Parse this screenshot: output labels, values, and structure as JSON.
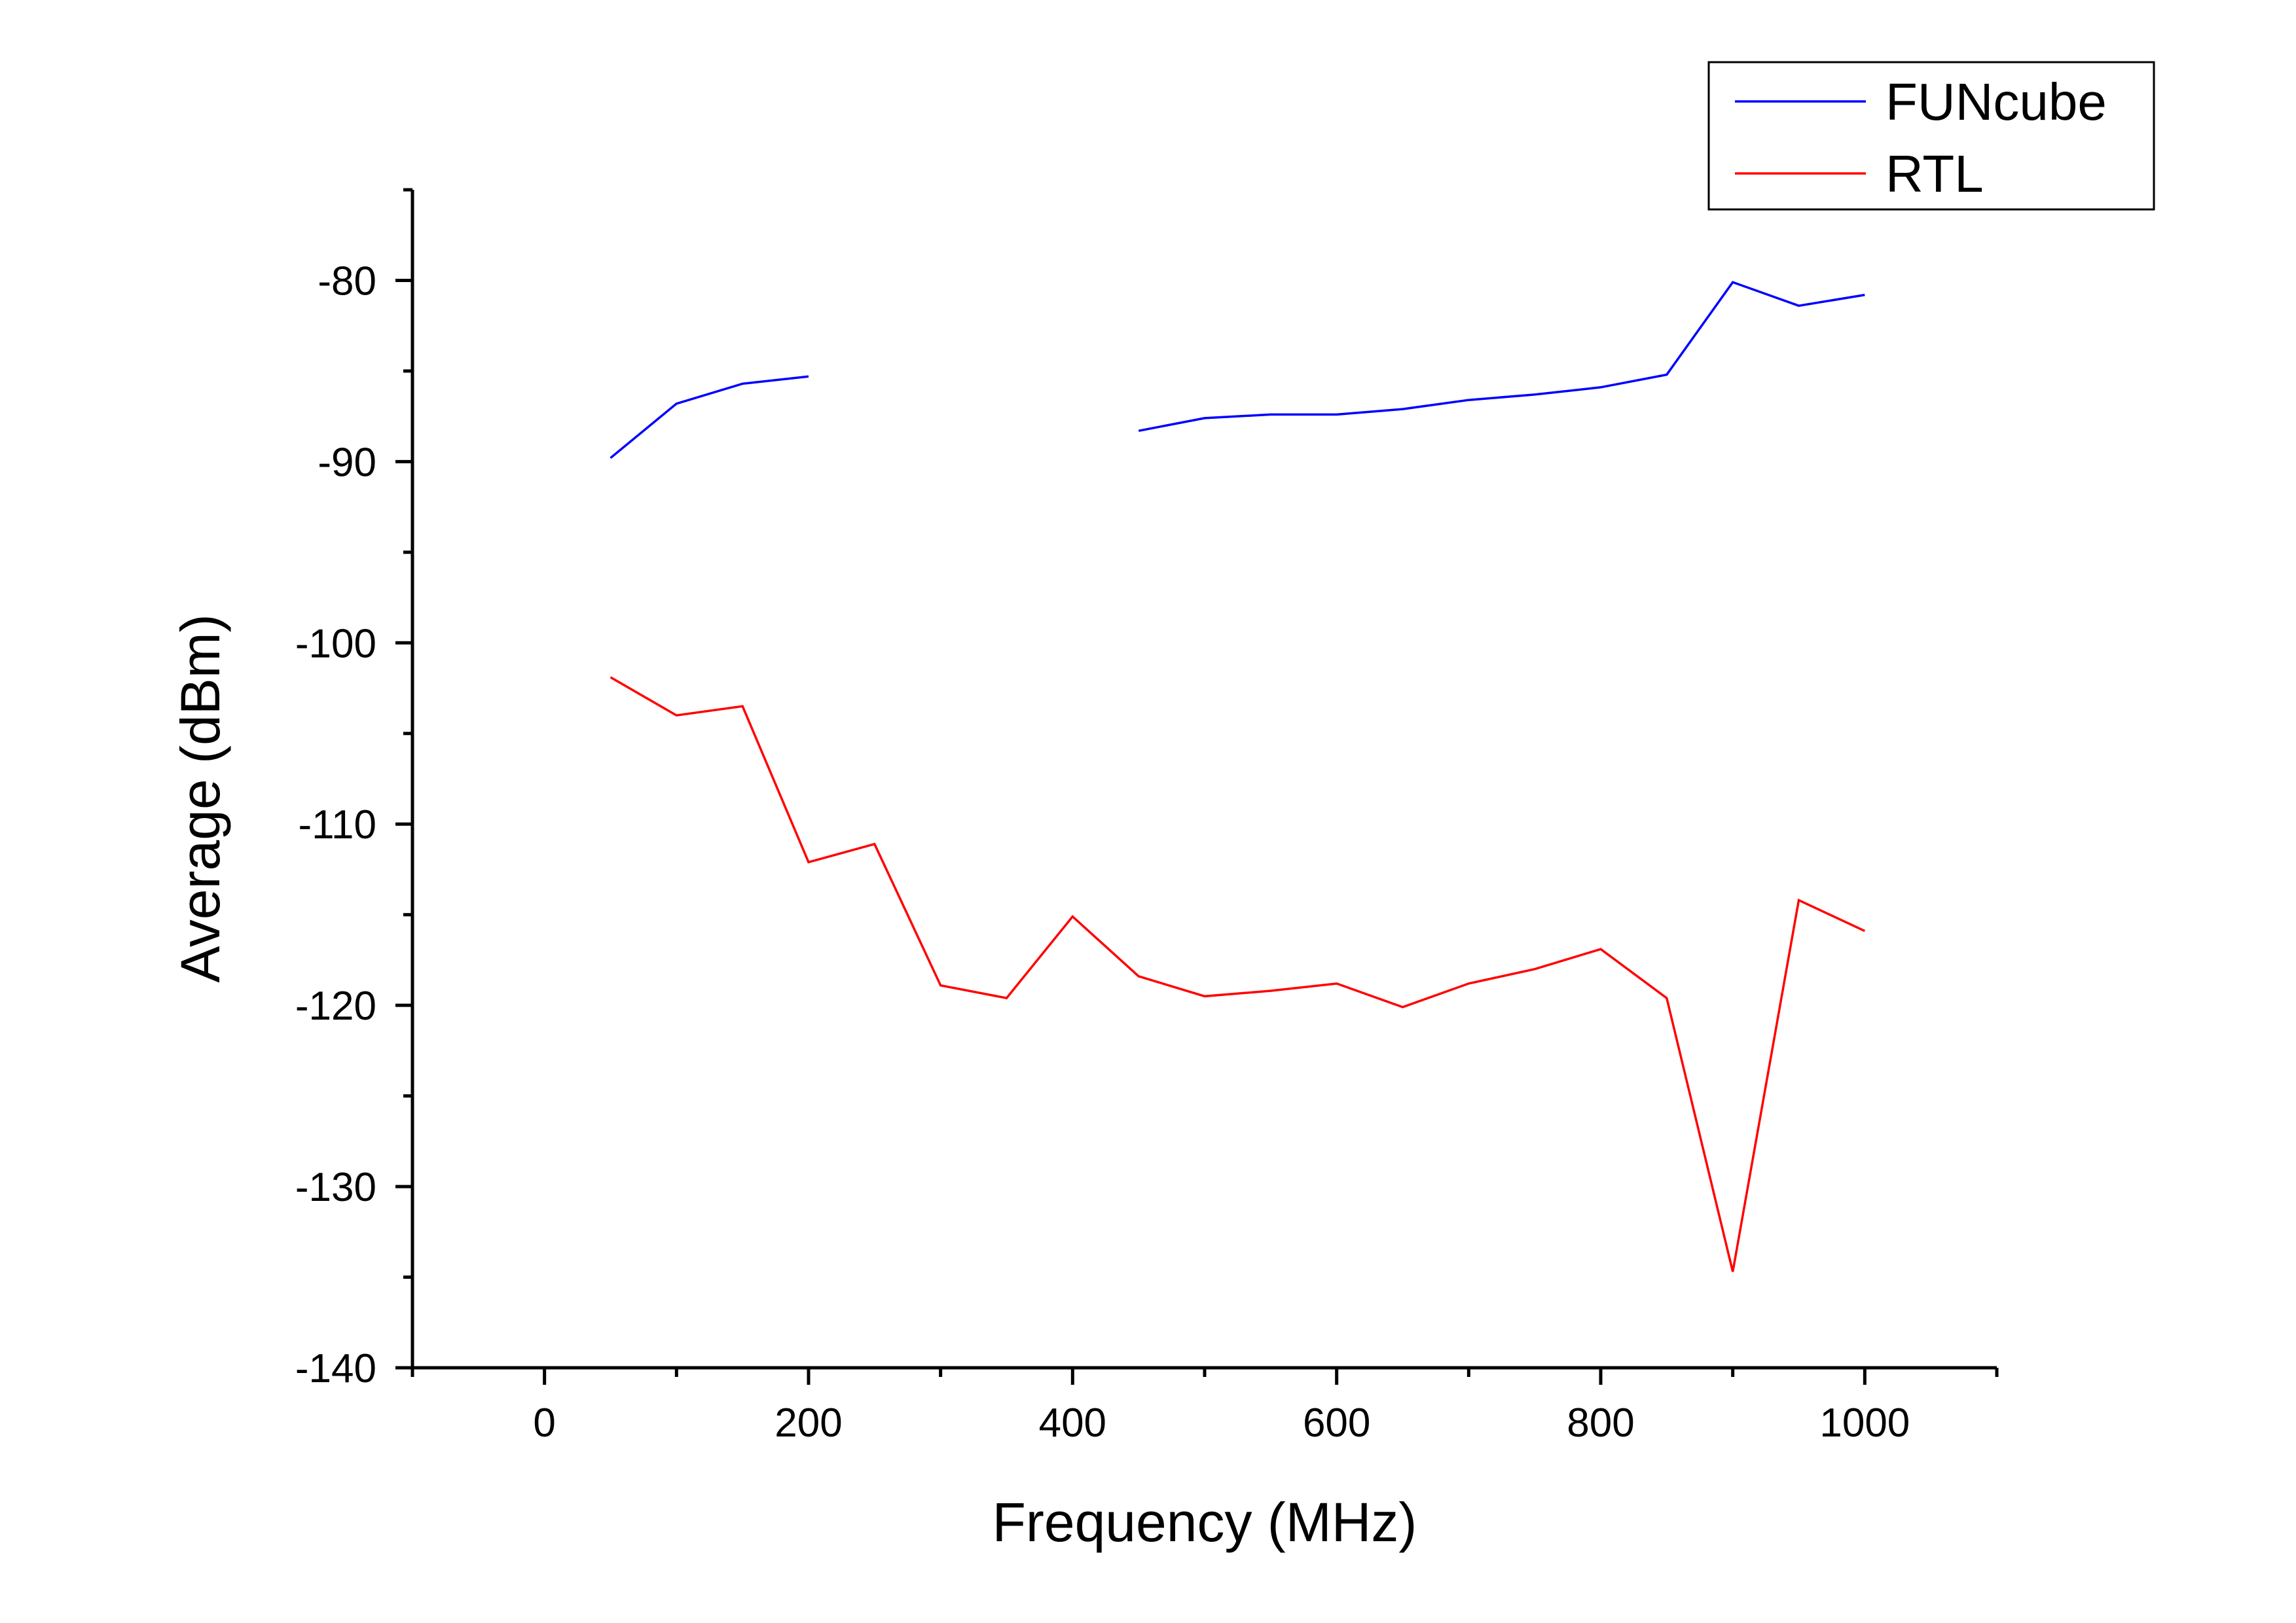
{
  "chart_data": {
    "type": "line",
    "xlabel": "Frequency (MHz)",
    "ylabel": "Average (dBm)",
    "xlim": [
      -100,
      1100
    ],
    "ylim": [
      -140,
      -75
    ],
    "x_ticks": [
      0,
      200,
      400,
      600,
      800,
      1000
    ],
    "x_tick_labels": [
      "0",
      "200",
      "400",
      "600",
      "800",
      "1000"
    ],
    "y_ticks": [
      -80,
      -90,
      -100,
      -110,
      -120,
      -130,
      -140
    ],
    "y_tick_labels": [
      "-80",
      "-90",
      "-100",
      "-110",
      "-120",
      "-130",
      "-140"
    ],
    "legend_position": "top-right",
    "grid": false,
    "series": [
      {
        "name": "FUNcube",
        "color": "#0000ff",
        "x": [
          50,
          100,
          150,
          200,
          250,
          300,
          350,
          400,
          450,
          500,
          550,
          600,
          650,
          700,
          750,
          800,
          850,
          900,
          950,
          1000
        ],
        "y": [
          -89.8,
          -86.8,
          -85.7,
          -85.3,
          null,
          null,
          null,
          null,
          -88.3,
          -87.6,
          -87.4,
          -87.4,
          -87.1,
          -86.6,
          -86.3,
          -85.9,
          -85.2,
          -80.1,
          -81.4,
          -80.8
        ]
      },
      {
        "name": "RTL",
        "color": "#ff0000",
        "x": [
          50,
          100,
          150,
          200,
          250,
          300,
          350,
          400,
          450,
          500,
          550,
          600,
          650,
          700,
          750,
          800,
          850,
          900,
          950,
          1000
        ],
        "y": [
          -101.9,
          -104.0,
          -103.5,
          -112.1,
          -111.1,
          -118.9,
          -119.6,
          -115.1,
          -118.4,
          -119.5,
          -119.2,
          -118.8,
          -120.1,
          -118.8,
          -118.0,
          -116.9,
          -119.6,
          -134.7,
          -114.2,
          -115.9
        ]
      }
    ]
  }
}
